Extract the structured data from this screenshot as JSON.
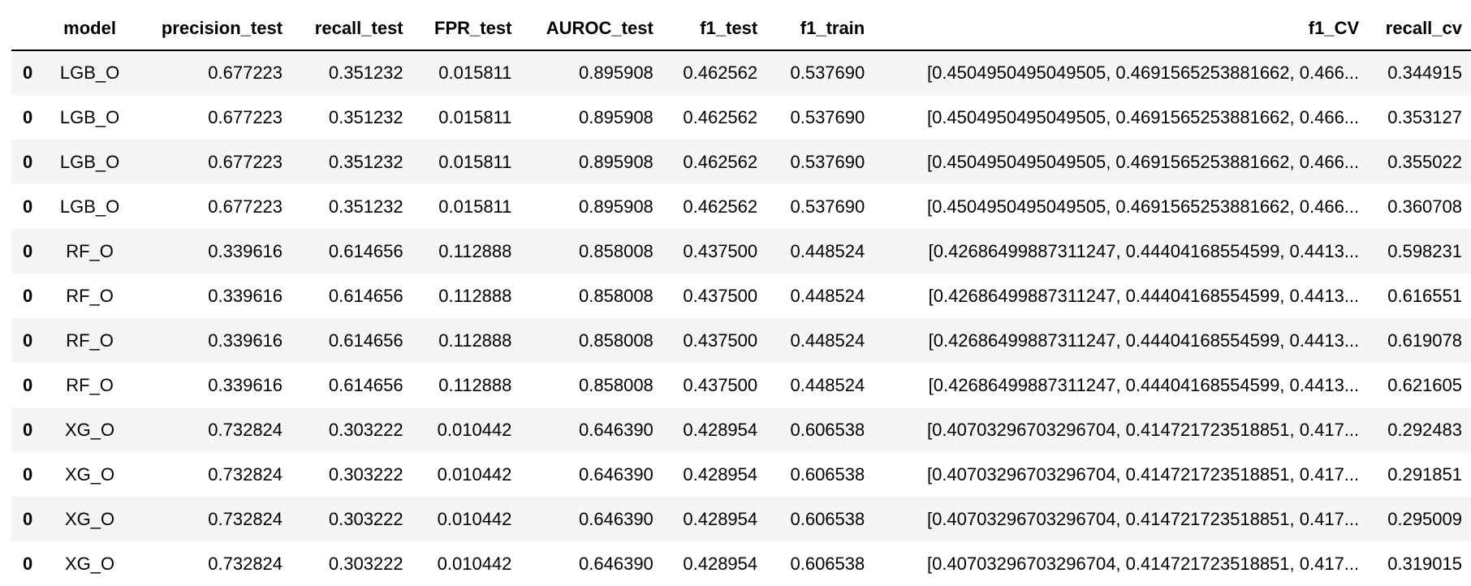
{
  "table": {
    "index_header": "",
    "columns": [
      "model",
      "precision_test",
      "recall_test",
      "FPR_test",
      "AUROC_test",
      "f1_test",
      "f1_train",
      "f1_CV",
      "recall_cv"
    ],
    "rows": [
      {
        "index": "0",
        "cells": [
          "LGB_O",
          "0.677223",
          "0.351232",
          "0.015811",
          "0.895908",
          "0.462562",
          "0.537690",
          "[0.4504950495049505, 0.4691565253881662, 0.466...",
          "0.344915"
        ]
      },
      {
        "index": "0",
        "cells": [
          "LGB_O",
          "0.677223",
          "0.351232",
          "0.015811",
          "0.895908",
          "0.462562",
          "0.537690",
          "[0.4504950495049505, 0.4691565253881662, 0.466...",
          "0.353127"
        ]
      },
      {
        "index": "0",
        "cells": [
          "LGB_O",
          "0.677223",
          "0.351232",
          "0.015811",
          "0.895908",
          "0.462562",
          "0.537690",
          "[0.4504950495049505, 0.4691565253881662, 0.466...",
          "0.355022"
        ]
      },
      {
        "index": "0",
        "cells": [
          "LGB_O",
          "0.677223",
          "0.351232",
          "0.015811",
          "0.895908",
          "0.462562",
          "0.537690",
          "[0.4504950495049505, 0.4691565253881662, 0.466...",
          "0.360708"
        ]
      },
      {
        "index": "0",
        "cells": [
          "RF_O",
          "0.339616",
          "0.614656",
          "0.112888",
          "0.858008",
          "0.437500",
          "0.448524",
          "[0.42686499887311247, 0.44404168554599, 0.4413...",
          "0.598231"
        ]
      },
      {
        "index": "0",
        "cells": [
          "RF_O",
          "0.339616",
          "0.614656",
          "0.112888",
          "0.858008",
          "0.437500",
          "0.448524",
          "[0.42686499887311247, 0.44404168554599, 0.4413...",
          "0.616551"
        ]
      },
      {
        "index": "0",
        "cells": [
          "RF_O",
          "0.339616",
          "0.614656",
          "0.112888",
          "0.858008",
          "0.437500",
          "0.448524",
          "[0.42686499887311247, 0.44404168554599, 0.4413...",
          "0.619078"
        ]
      },
      {
        "index": "0",
        "cells": [
          "RF_O",
          "0.339616",
          "0.614656",
          "0.112888",
          "0.858008",
          "0.437500",
          "0.448524",
          "[0.42686499887311247, 0.44404168554599, 0.4413...",
          "0.621605"
        ]
      },
      {
        "index": "0",
        "cells": [
          "XG_O",
          "0.732824",
          "0.303222",
          "0.010442",
          "0.646390",
          "0.428954",
          "0.606538",
          "[0.40703296703296704, 0.414721723518851, 0.417...",
          "0.292483"
        ]
      },
      {
        "index": "0",
        "cells": [
          "XG_O",
          "0.732824",
          "0.303222",
          "0.010442",
          "0.646390",
          "0.428954",
          "0.606538",
          "[0.40703296703296704, 0.414721723518851, 0.417...",
          "0.291851"
        ]
      },
      {
        "index": "0",
        "cells": [
          "XG_O",
          "0.732824",
          "0.303222",
          "0.010442",
          "0.646390",
          "0.428954",
          "0.606538",
          "[0.40703296703296704, 0.414721723518851, 0.417...",
          "0.295009"
        ]
      },
      {
        "index": "0",
        "cells": [
          "XG_O",
          "0.732824",
          "0.303222",
          "0.010442",
          "0.646390",
          "0.428954",
          "0.606538",
          "[0.40703296703296704, 0.414721723518851, 0.417...",
          "0.319015"
        ]
      }
    ]
  }
}
